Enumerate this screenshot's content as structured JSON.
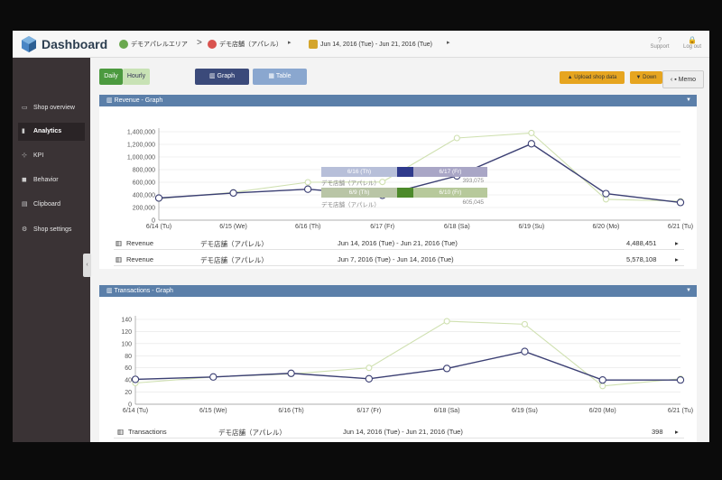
{
  "app": {
    "title": "Dashboard",
    "breadcrumb": {
      "area": "デモアパレルエリア",
      "shop": "デモ店舗（アパレル）",
      "date_range": "Jun 14, 2016 (Tue) - Jun 21, 2016 (Tue)"
    },
    "support_label": "Support",
    "logout_label": "Log out"
  },
  "sidebar": {
    "items": [
      {
        "label": "Shop overview",
        "icon": "monitor-icon"
      },
      {
        "label": "Analytics",
        "icon": "chart-icon",
        "active": true
      },
      {
        "label": "KPI",
        "icon": "kpi-icon"
      },
      {
        "label": "Behavior",
        "icon": "camera-icon"
      },
      {
        "label": "Clipboard",
        "icon": "clipboard-icon"
      },
      {
        "label": "Shop settings",
        "icon": "gears-icon"
      }
    ]
  },
  "toolbar": {
    "daily_label": "Daily",
    "hourly_label": "Hourly",
    "graph_label": "Graph",
    "table_label": "Table",
    "upload_label": "Upload shop data",
    "download_label": "Down",
    "memo_label": "Memo"
  },
  "colors": {
    "accent_blue": "#5b7fa9",
    "series_current": "#3b3f73",
    "series_previous": "#cfe0b0",
    "daily_green": "#4c9a3f",
    "upload_orange": "#e6a520"
  },
  "revenue": {
    "panel_title": "Revenue - Graph",
    "tooltip": {
      "date1": "6/16 (Th)",
      "date2": "6/17 (Fr)",
      "label1": "デモ店舗（アパレル）",
      "value1": "393,075",
      "date3": "6/9 (Th)",
      "date4": "6/10 (Fr)",
      "label2": "デモ店舗（アパレル）",
      "value2": "605,045"
    },
    "rows": [
      {
        "metric": "Revenue",
        "shop": "デモ店舗（アパレル）",
        "range": "Jun 14, 2016 (Tue) - Jun 21, 2016 (Tue)",
        "total": "4,488,451"
      },
      {
        "metric": "Revenue",
        "shop": "デモ店舗（アパレル）",
        "range": "Jun 7, 2016 (Tue) - Jun 14, 2016 (Tue)",
        "total": "5,578,108"
      }
    ]
  },
  "transactions": {
    "panel_title": "Transactions - Graph",
    "rows": [
      {
        "metric": "Transactions",
        "shop": "デモ店舗（アパレル）",
        "range": "Jun 14, 2016 (Tue) - Jun 21, 2016 (Tue)",
        "total": "398"
      }
    ]
  },
  "chart_data": [
    {
      "type": "line",
      "title": "Revenue - Graph",
      "categories": [
        "6/14 (Tu)",
        "6/15 (We)",
        "6/16 (Th)",
        "6/17 (Fr)",
        "6/18 (Sa)",
        "6/19 (Su)",
        "6/20 (Mo)",
        "6/21 (Tu)"
      ],
      "yticks": [
        "0",
        "200,000",
        "400,000",
        "600,000",
        "800,000",
        "1,000,000",
        "1,200,000",
        "1,400,000"
      ],
      "ylim": [
        0,
        1400000
      ],
      "series": [
        {
          "values": [
            350000,
            430000,
            490000,
            393075,
            700000,
            1210000,
            420000,
            280000
          ],
          "color": "#3b3f73"
        },
        {
          "values": [
            340000,
            440000,
            600000,
            605045,
            1300000,
            1380000,
            330000,
            300000
          ],
          "color": "#cfe0b0"
        }
      ],
      "grid": true
    },
    {
      "type": "line",
      "title": "Transactions - Graph",
      "categories": [
        "6/14 (Tu)",
        "6/15 (We)",
        "6/16 (Th)",
        "6/17 (Fr)",
        "6/18 (Sa)",
        "6/19 (Su)",
        "6/20 (Mo)",
        "6/21 (Tu)"
      ],
      "yticks": [
        "0",
        "20",
        "40",
        "60",
        "80",
        "100",
        "120",
        "140"
      ],
      "ylim": [
        0,
        140
      ],
      "series": [
        {
          "values": [
            41,
            45,
            51,
            42,
            59,
            87,
            40,
            40
          ],
          "color": "#3b3f73"
        },
        {
          "values": [
            35,
            45,
            50,
            60,
            137,
            132,
            30,
            42
          ],
          "color": "#cfe0b0"
        }
      ],
      "grid": true
    }
  ]
}
